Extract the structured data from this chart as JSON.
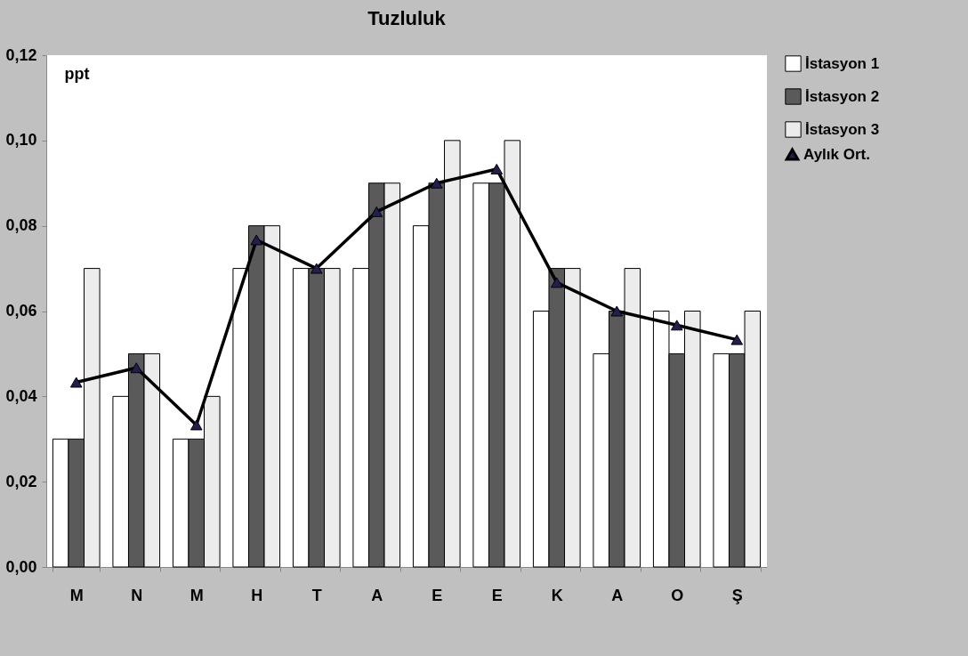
{
  "chart_data": {
    "type": "bar",
    "title": "Tuzluluk",
    "ylabel": "ppt",
    "categories": [
      "M",
      "N",
      "M",
      "H",
      "T",
      "A",
      "E",
      "E",
      "K",
      "A",
      "O",
      "Ş"
    ],
    "series": [
      {
        "name": "İstasyon 1",
        "color": "#ffffff",
        "values": [
          0.03,
          0.04,
          0.03,
          0.07,
          0.07,
          0.07,
          0.08,
          0.09,
          0.06,
          0.05,
          0.06,
          0.05
        ]
      },
      {
        "name": "İstasyon 2",
        "color": "#5a5a5a",
        "values": [
          0.03,
          0.05,
          0.03,
          0.08,
          0.07,
          0.09,
          0.09,
          0.09,
          0.07,
          0.06,
          0.05,
          0.05
        ]
      },
      {
        "name": "İstasyon 3",
        "color": "#ececec",
        "values": [
          0.07,
          0.05,
          0.04,
          0.08,
          0.07,
          0.09,
          0.1,
          0.1,
          0.07,
          0.07,
          0.06,
          0.06
        ]
      },
      {
        "name": "Aylık Ort.",
        "type": "line",
        "color": "#000000",
        "marker": "triangle",
        "values": [
          0.0433,
          0.0467,
          0.0333,
          0.0767,
          0.07,
          0.0833,
          0.09,
          0.0933,
          0.0667,
          0.06,
          0.0567,
          0.0533
        ]
      }
    ],
    "ylim": [
      0,
      0.12
    ],
    "yticks": [
      {
        "value": 0,
        "label": "0,00"
      },
      {
        "value": 0.02,
        "label": "0,02"
      },
      {
        "value": 0.04,
        "label": "0,04"
      },
      {
        "value": 0.06,
        "label": "0,06"
      },
      {
        "value": 0.08,
        "label": "0,08"
      },
      {
        "value": 0.1,
        "label": "0,10"
      },
      {
        "value": 0.12,
        "label": "0,12"
      }
    ],
    "grid": false,
    "legend": "top right"
  }
}
